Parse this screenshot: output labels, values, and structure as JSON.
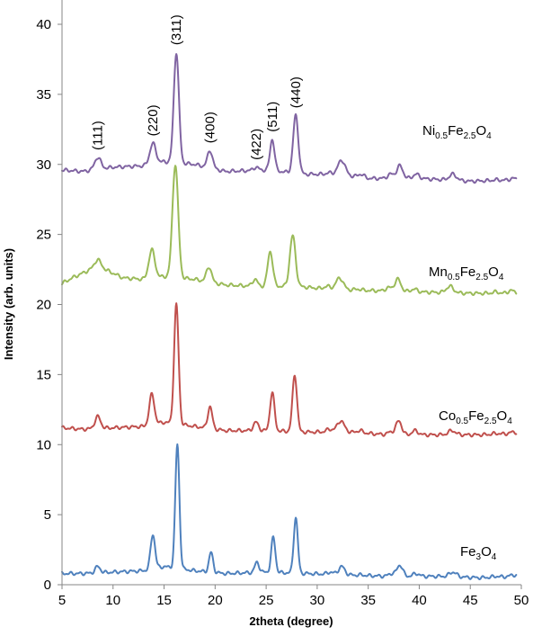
{
  "chart_data": {
    "type": "line",
    "title": "",
    "xlabel": "2theta (degree)",
    "ylabel": "Intensity (arb. units)",
    "xlim": [
      5,
      50
    ],
    "ylim": [
      0,
      40
    ],
    "xticks": [
      5,
      10,
      15,
      20,
      25,
      30,
      35,
      40,
      45,
      50
    ],
    "yticks": [
      0,
      5,
      10,
      15,
      20,
      25,
      30,
      35,
      40
    ],
    "grid": false,
    "peak_annotations": [
      {
        "label": "(111)",
        "x": 8.5,
        "y": 30.5
      },
      {
        "label": "(220)",
        "x": 13.9,
        "y": 31.5
      },
      {
        "label": "(311)",
        "x": 16.2,
        "y": 38
      },
      {
        "label": "(400)",
        "x": 19.5,
        "y": 31
      },
      {
        "label": "(422)",
        "x": 24.0,
        "y": 29.8
      },
      {
        "label": "(511)",
        "x": 25.6,
        "y": 31.8
      },
      {
        "label": "(440)",
        "x": 27.9,
        "y": 33.5
      }
    ],
    "series": [
      {
        "name": "Ni0.5Fe2.5O4",
        "label_parts": [
          {
            "text": "Ni",
            "sub": false
          },
          {
            "text": "0.5",
            "sub": true
          },
          {
            "text": "Fe",
            "sub": false
          },
          {
            "text": "2.5",
            "sub": true
          },
          {
            "text": "O",
            "sub": false
          },
          {
            "text": "4",
            "sub": true
          }
        ],
        "color": "#8064a2",
        "baseline": [
          [
            5,
            29.6
          ],
          [
            7,
            29.5
          ],
          [
            10,
            29.8
          ],
          [
            13,
            29.9
          ],
          [
            15,
            30.2
          ],
          [
            18,
            30.0
          ],
          [
            21,
            29.5
          ],
          [
            25,
            29.6
          ],
          [
            29,
            29.3
          ],
          [
            32,
            29.3
          ],
          [
            35,
            29.0
          ],
          [
            40,
            29.0
          ],
          [
            45,
            28.8
          ],
          [
            49.5,
            28.9
          ]
        ],
        "peaks": [
          {
            "x": 8.5,
            "y": 30.5,
            "w": 0.3
          },
          {
            "x": 13.9,
            "y": 31.5,
            "w": 0.3
          },
          {
            "x": 16.2,
            "y": 38.0,
            "w": 0.25
          },
          {
            "x": 19.5,
            "y": 31.0,
            "w": 0.25
          },
          {
            "x": 24.0,
            "y": 29.8,
            "w": 0.25
          },
          {
            "x": 25.6,
            "y": 31.8,
            "w": 0.22
          },
          {
            "x": 27.9,
            "y": 33.5,
            "w": 0.25
          },
          {
            "x": 31.2,
            "y": 29.4,
            "w": 0.3
          },
          {
            "x": 32.4,
            "y": 30.3,
            "w": 0.35
          },
          {
            "x": 34.3,
            "y": 29.3,
            "w": 0.3
          },
          {
            "x": 37.2,
            "y": 29.3,
            "w": 0.3
          },
          {
            "x": 38.1,
            "y": 29.9,
            "w": 0.3
          },
          {
            "x": 39.7,
            "y": 29.3,
            "w": 0.3
          },
          {
            "x": 43.3,
            "y": 29.3,
            "w": 0.35
          },
          {
            "x": 47.5,
            "y": 28.9,
            "w": 0.3
          },
          {
            "x": 49.2,
            "y": 29.0,
            "w": 0.3
          }
        ]
      },
      {
        "name": "Mn0.5Fe2.5O4",
        "label_parts": [
          {
            "text": "Mn",
            "sub": false
          },
          {
            "text": "0.5",
            "sub": true
          },
          {
            "text": "Fe",
            "sub": false
          },
          {
            "text": "2.5",
            "sub": true
          },
          {
            "text": "O",
            "sub": false
          },
          {
            "text": "4",
            "sub": true
          }
        ],
        "color": "#9bbb59",
        "baseline": [
          [
            5,
            21.5
          ],
          [
            6,
            21.9
          ],
          [
            7.5,
            22.4
          ],
          [
            8.5,
            22.6
          ],
          [
            9.5,
            22.4
          ],
          [
            11,
            21.9
          ],
          [
            13,
            21.8
          ],
          [
            15,
            22.0
          ],
          [
            18,
            21.8
          ],
          [
            21,
            21.4
          ],
          [
            24,
            21.3
          ],
          [
            28,
            21.3
          ],
          [
            31,
            21.1
          ],
          [
            35,
            21.0
          ],
          [
            40,
            20.9
          ],
          [
            45,
            20.8
          ],
          [
            49.5,
            20.8
          ]
        ],
        "peaks": [
          {
            "x": 8.5,
            "y": 23.2,
            "w": 0.35
          },
          {
            "x": 13.8,
            "y": 23.9,
            "w": 0.3
          },
          {
            "x": 16.1,
            "y": 30.0,
            "w": 0.28
          },
          {
            "x": 19.4,
            "y": 22.7,
            "w": 0.25
          },
          {
            "x": 23.9,
            "y": 21.8,
            "w": 0.25
          },
          {
            "x": 25.4,
            "y": 23.8,
            "w": 0.25
          },
          {
            "x": 27.6,
            "y": 24.9,
            "w": 0.28
          },
          {
            "x": 31.0,
            "y": 21.3,
            "w": 0.3
          },
          {
            "x": 32.2,
            "y": 21.9,
            "w": 0.35
          },
          {
            "x": 34.0,
            "y": 21.1,
            "w": 0.3
          },
          {
            "x": 37.0,
            "y": 21.2,
            "w": 0.3
          },
          {
            "x": 37.9,
            "y": 21.8,
            "w": 0.3
          },
          {
            "x": 39.5,
            "y": 21.1,
            "w": 0.3
          },
          {
            "x": 43.0,
            "y": 21.3,
            "w": 0.35
          },
          {
            "x": 47.5,
            "y": 20.9,
            "w": 0.3
          },
          {
            "x": 49.0,
            "y": 21.0,
            "w": 0.3
          }
        ]
      },
      {
        "name": "Co0.5Fe2.5O4",
        "label_parts": [
          {
            "text": "Co",
            "sub": false
          },
          {
            "text": "0.5",
            "sub": true
          },
          {
            "text": "Fe",
            "sub": false
          },
          {
            "text": "2.5",
            "sub": true
          },
          {
            "text": "O",
            "sub": false
          },
          {
            "text": "4",
            "sub": true
          }
        ],
        "color": "#c0504d",
        "baseline": [
          [
            5,
            11.2
          ],
          [
            7,
            11.1
          ],
          [
            10,
            11.2
          ],
          [
            13,
            11.3
          ],
          [
            15,
            11.6
          ],
          [
            18,
            11.3
          ],
          [
            21,
            11.0
          ],
          [
            25,
            11.0
          ],
          [
            29,
            10.9
          ],
          [
            33,
            10.9
          ],
          [
            37,
            10.7
          ],
          [
            42,
            10.7
          ],
          [
            46,
            10.7
          ],
          [
            49.5,
            10.8
          ]
        ],
        "peaks": [
          {
            "x": 8.5,
            "y": 12.0,
            "w": 0.28
          },
          {
            "x": 13.8,
            "y": 13.6,
            "w": 0.25
          },
          {
            "x": 16.2,
            "y": 20.0,
            "w": 0.22
          },
          {
            "x": 19.5,
            "y": 12.7,
            "w": 0.22
          },
          {
            "x": 24.0,
            "y": 11.6,
            "w": 0.25
          },
          {
            "x": 25.6,
            "y": 13.7,
            "w": 0.22
          },
          {
            "x": 27.8,
            "y": 15.0,
            "w": 0.22
          },
          {
            "x": 31.2,
            "y": 11.1,
            "w": 0.3
          },
          {
            "x": 32.3,
            "y": 11.7,
            "w": 0.35
          },
          {
            "x": 34.2,
            "y": 11.0,
            "w": 0.3
          },
          {
            "x": 37.2,
            "y": 10.9,
            "w": 0.3
          },
          {
            "x": 38.0,
            "y": 11.7,
            "w": 0.28
          },
          {
            "x": 39.6,
            "y": 11.0,
            "w": 0.3
          },
          {
            "x": 43.2,
            "y": 11.0,
            "w": 0.35
          },
          {
            "x": 47.5,
            "y": 10.8,
            "w": 0.3
          },
          {
            "x": 49.2,
            "y": 10.9,
            "w": 0.3
          }
        ]
      },
      {
        "name": "Fe3O4",
        "label_parts": [
          {
            "text": "Fe",
            "sub": false
          },
          {
            "text": "3",
            "sub": true
          },
          {
            "text": "O",
            "sub": false
          },
          {
            "text": "4",
            "sub": true
          }
        ],
        "color": "#4f81bd",
        "baseline": [
          [
            5,
            0.8
          ],
          [
            7,
            0.8
          ],
          [
            10,
            0.9
          ],
          [
            13,
            1.0
          ],
          [
            15,
            1.3
          ],
          [
            18,
            1.0
          ],
          [
            21,
            0.8
          ],
          [
            25,
            0.9
          ],
          [
            29,
            0.8
          ],
          [
            33,
            0.7
          ],
          [
            37,
            0.6
          ],
          [
            42,
            0.6
          ],
          [
            46,
            0.5
          ],
          [
            49.5,
            0.6
          ]
        ],
        "peaks": [
          {
            "x": 8.5,
            "y": 1.3,
            "w": 0.25
          },
          {
            "x": 13.9,
            "y": 3.6,
            "w": 0.22
          },
          {
            "x": 16.3,
            "y": 10.0,
            "w": 0.2
          },
          {
            "x": 19.6,
            "y": 2.3,
            "w": 0.2
          },
          {
            "x": 24.1,
            "y": 1.6,
            "w": 0.22
          },
          {
            "x": 25.7,
            "y": 3.4,
            "w": 0.2
          },
          {
            "x": 27.9,
            "y": 4.8,
            "w": 0.2
          },
          {
            "x": 31.3,
            "y": 0.9,
            "w": 0.3
          },
          {
            "x": 32.4,
            "y": 1.3,
            "w": 0.3
          },
          {
            "x": 34.3,
            "y": 0.7,
            "w": 0.3
          },
          {
            "x": 37.3,
            "y": 0.8,
            "w": 0.3
          },
          {
            "x": 38.1,
            "y": 1.4,
            "w": 0.28
          },
          {
            "x": 39.7,
            "y": 0.8,
            "w": 0.3
          },
          {
            "x": 43.3,
            "y": 0.9,
            "w": 0.35
          },
          {
            "x": 47.5,
            "y": 0.6,
            "w": 0.3
          },
          {
            "x": 49.2,
            "y": 0.7,
            "w": 0.3
          }
        ]
      }
    ]
  }
}
